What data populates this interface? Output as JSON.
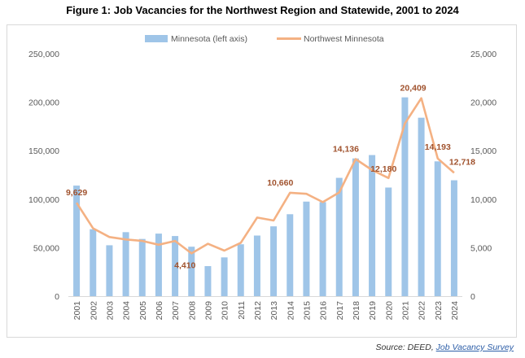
{
  "chart_data": {
    "type": "bar+line",
    "title": "Figure 1: Job Vacancies for the Northwest Region and Statewide, 2001 to 2024",
    "categories": [
      "2001",
      "2002",
      "2003",
      "2004",
      "2005",
      "2006",
      "2007",
      "2008",
      "2009",
      "2010",
      "2011",
      "2012",
      "2013",
      "2014",
      "2015",
      "2016",
      "2017",
      "2018",
      "2019",
      "2020",
      "2021",
      "2022",
      "2023",
      "2024"
    ],
    "series": [
      {
        "name": "Minnesota (left axis)",
        "type": "bar",
        "axis": "left",
        "color": "#9fc5e8",
        "values": [
          114000,
          69000,
          52500,
          66000,
          59000,
          64500,
          62000,
          51000,
          31000,
          40000,
          53500,
          62500,
          72000,
          84500,
          97500,
          97000,
          122000,
          142000,
          145500,
          112000,
          205000,
          184000,
          139000,
          119500
        ]
      },
      {
        "name": "Northwest Minnesota",
        "type": "line",
        "axis": "right",
        "color": "#f4b183",
        "values": [
          9629,
          7000,
          6100,
          5850,
          5700,
          5300,
          5700,
          4410,
          5400,
          4700,
          5500,
          8100,
          7800,
          10660,
          10550,
          9700,
          10700,
          14136,
          13000,
          12180,
          17800,
          20409,
          14193,
          12718
        ]
      }
    ],
    "data_labels": [
      {
        "index": 0,
        "text": "9,629"
      },
      {
        "index": 7,
        "text": "4,410"
      },
      {
        "index": 13,
        "text": "10,660"
      },
      {
        "index": 17,
        "text": "14,136"
      },
      {
        "index": 19,
        "text": "12,180"
      },
      {
        "index": 21,
        "text": "20,409"
      },
      {
        "index": 22,
        "text": "14,193"
      },
      {
        "index": 23,
        "text": "12,718"
      }
    ],
    "left_axis": {
      "min": 0,
      "max": 250000,
      "ticks": [
        "0",
        "50,000",
        "100,000",
        "150,000",
        "200,000",
        "250,000"
      ]
    },
    "right_axis": {
      "min": 0,
      "max": 25000,
      "ticks": [
        "0",
        "5,000",
        "10,000",
        "15,000",
        "20,000",
        "25,000"
      ]
    },
    "legend_position": "top",
    "grid": false
  },
  "source": {
    "prefix": "Source: DEED, ",
    "link": "Job Vacancy Survey"
  }
}
